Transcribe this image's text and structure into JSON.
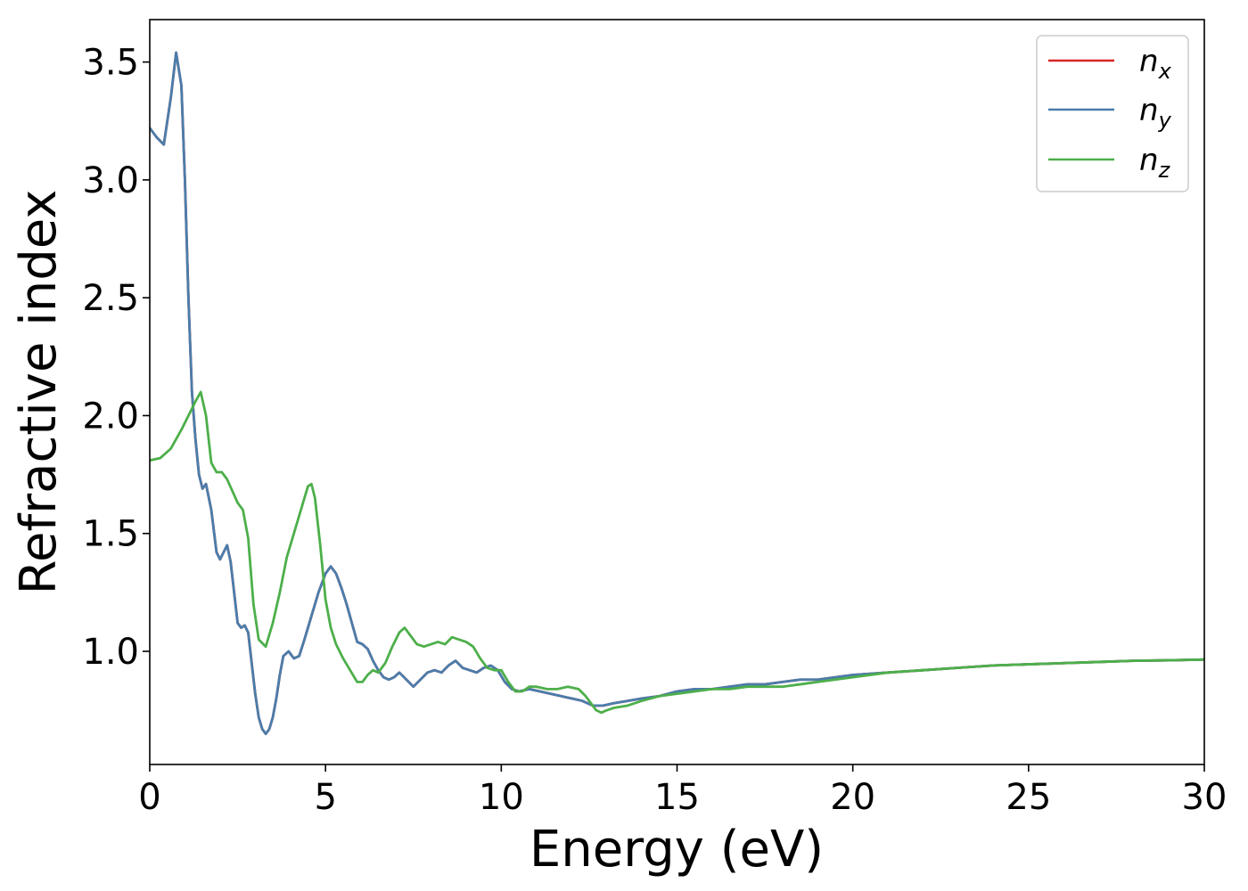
{
  "chart_data": {
    "type": "line",
    "title": "",
    "xlabel": "Energy (eV)",
    "ylabel": "Refractive index",
    "xlim": [
      0,
      30
    ],
    "ylim": [
      0.52,
      3.68
    ],
    "xticks": [
      0,
      5,
      10,
      15,
      20,
      25,
      30
    ],
    "xtick_labels": [
      "0",
      "5",
      "10",
      "15",
      "20",
      "25",
      "30"
    ],
    "yticks": [
      1.0,
      1.5,
      2.0,
      2.5,
      3.0,
      3.5
    ],
    "ytick_labels": [
      "1.0",
      "1.5",
      "2.0",
      "2.5",
      "3.0",
      "3.5"
    ],
    "grid": false,
    "legend_position": "top-right",
    "series": [
      {
        "name": "n",
        "subscript": "x",
        "color": "#d62728",
        "x": [
          0,
          0.2,
          0.4,
          0.6,
          0.75,
          0.9,
          1.0,
          1.1,
          1.2,
          1.3,
          1.4,
          1.5,
          1.6,
          1.75,
          1.9,
          2.0,
          2.1,
          2.2,
          2.3,
          2.4,
          2.5,
          2.6,
          2.7,
          2.8,
          2.9,
          3.0,
          3.1,
          3.2,
          3.3,
          3.4,
          3.5,
          3.6,
          3.7,
          3.8,
          3.95,
          4.1,
          4.25,
          4.4,
          4.6,
          4.8,
          5.0,
          5.15,
          5.3,
          5.45,
          5.6,
          5.75,
          5.9,
          6.05,
          6.2,
          6.35,
          6.5,
          6.65,
          6.8,
          6.95,
          7.1,
          7.3,
          7.5,
          7.7,
          7.9,
          8.1,
          8.3,
          8.5,
          8.7,
          8.9,
          9.1,
          9.3,
          9.5,
          9.7,
          9.9,
          10.1,
          10.3,
          10.5,
          10.8,
          11.1,
          11.4,
          11.7,
          12.0,
          12.3,
          12.6,
          12.9,
          13.2,
          13.6,
          14.0,
          14.5,
          15.0,
          15.5,
          16.0,
          16.5,
          17.0,
          17.5,
          18.0,
          18.5,
          19.0,
          19.5,
          20.0,
          21.0,
          22.0,
          23.0,
          24.0,
          25.0,
          26.0,
          27.0,
          28.0,
          29.0,
          30.0
        ],
        "y": [
          3.22,
          3.18,
          3.15,
          3.35,
          3.54,
          3.4,
          3.0,
          2.5,
          2.1,
          1.9,
          1.75,
          1.69,
          1.71,
          1.6,
          1.42,
          1.39,
          1.42,
          1.45,
          1.38,
          1.25,
          1.12,
          1.1,
          1.11,
          1.08,
          0.95,
          0.82,
          0.72,
          0.67,
          0.65,
          0.67,
          0.72,
          0.8,
          0.9,
          0.98,
          1.0,
          0.97,
          0.98,
          1.05,
          1.15,
          1.25,
          1.33,
          1.36,
          1.33,
          1.27,
          1.2,
          1.12,
          1.04,
          1.03,
          1.01,
          0.96,
          0.92,
          0.89,
          0.88,
          0.89,
          0.91,
          0.88,
          0.85,
          0.88,
          0.91,
          0.92,
          0.91,
          0.94,
          0.96,
          0.93,
          0.92,
          0.91,
          0.93,
          0.94,
          0.92,
          0.87,
          0.84,
          0.83,
          0.84,
          0.83,
          0.82,
          0.81,
          0.8,
          0.79,
          0.77,
          0.77,
          0.78,
          0.79,
          0.8,
          0.81,
          0.83,
          0.84,
          0.84,
          0.85,
          0.86,
          0.86,
          0.87,
          0.88,
          0.88,
          0.89,
          0.9,
          0.91,
          0.92,
          0.93,
          0.94,
          0.945,
          0.95,
          0.955,
          0.96,
          0.962,
          0.965
        ]
      },
      {
        "name": "n",
        "subscript": "y",
        "color": "#4a7dab",
        "x": [
          0,
          0.2,
          0.4,
          0.6,
          0.75,
          0.9,
          1.0,
          1.1,
          1.2,
          1.3,
          1.4,
          1.5,
          1.6,
          1.75,
          1.9,
          2.0,
          2.1,
          2.2,
          2.3,
          2.4,
          2.5,
          2.6,
          2.7,
          2.8,
          2.9,
          3.0,
          3.1,
          3.2,
          3.3,
          3.4,
          3.5,
          3.6,
          3.7,
          3.8,
          3.95,
          4.1,
          4.25,
          4.4,
          4.6,
          4.8,
          5.0,
          5.15,
          5.3,
          5.45,
          5.6,
          5.75,
          5.9,
          6.05,
          6.2,
          6.35,
          6.5,
          6.65,
          6.8,
          6.95,
          7.1,
          7.3,
          7.5,
          7.7,
          7.9,
          8.1,
          8.3,
          8.5,
          8.7,
          8.9,
          9.1,
          9.3,
          9.5,
          9.7,
          9.9,
          10.1,
          10.3,
          10.5,
          10.8,
          11.1,
          11.4,
          11.7,
          12.0,
          12.3,
          12.6,
          12.9,
          13.2,
          13.6,
          14.0,
          14.5,
          15.0,
          15.5,
          16.0,
          16.5,
          17.0,
          17.5,
          18.0,
          18.5,
          19.0,
          19.5,
          20.0,
          21.0,
          22.0,
          23.0,
          24.0,
          25.0,
          26.0,
          27.0,
          28.0,
          29.0,
          30.0
        ],
        "y": [
          3.22,
          3.18,
          3.15,
          3.35,
          3.54,
          3.4,
          3.0,
          2.5,
          2.1,
          1.9,
          1.75,
          1.69,
          1.71,
          1.6,
          1.42,
          1.39,
          1.42,
          1.45,
          1.38,
          1.25,
          1.12,
          1.1,
          1.11,
          1.08,
          0.95,
          0.82,
          0.72,
          0.67,
          0.65,
          0.67,
          0.72,
          0.8,
          0.9,
          0.98,
          1.0,
          0.97,
          0.98,
          1.05,
          1.15,
          1.25,
          1.33,
          1.36,
          1.33,
          1.27,
          1.2,
          1.12,
          1.04,
          1.03,
          1.01,
          0.96,
          0.92,
          0.89,
          0.88,
          0.89,
          0.91,
          0.88,
          0.85,
          0.88,
          0.91,
          0.92,
          0.91,
          0.94,
          0.96,
          0.93,
          0.92,
          0.91,
          0.93,
          0.94,
          0.92,
          0.87,
          0.84,
          0.83,
          0.84,
          0.83,
          0.82,
          0.81,
          0.8,
          0.79,
          0.77,
          0.77,
          0.78,
          0.79,
          0.8,
          0.81,
          0.83,
          0.84,
          0.84,
          0.85,
          0.86,
          0.86,
          0.87,
          0.88,
          0.88,
          0.89,
          0.9,
          0.91,
          0.92,
          0.93,
          0.94,
          0.945,
          0.95,
          0.955,
          0.96,
          0.962,
          0.965
        ]
      },
      {
        "name": "n",
        "subscript": "z",
        "color": "#4daf4a",
        "x": [
          0,
          0.3,
          0.6,
          0.9,
          1.1,
          1.3,
          1.45,
          1.6,
          1.75,
          1.9,
          2.05,
          2.2,
          2.35,
          2.5,
          2.65,
          2.8,
          2.95,
          3.1,
          3.3,
          3.5,
          3.7,
          3.9,
          4.1,
          4.3,
          4.5,
          4.6,
          4.7,
          4.85,
          5.0,
          5.15,
          5.3,
          5.5,
          5.7,
          5.9,
          6.05,
          6.2,
          6.35,
          6.5,
          6.7,
          6.9,
          7.1,
          7.25,
          7.4,
          7.6,
          7.8,
          8.0,
          8.2,
          8.4,
          8.6,
          8.8,
          9.0,
          9.2,
          9.4,
          9.6,
          9.8,
          10.0,
          10.2,
          10.4,
          10.6,
          10.8,
          11.0,
          11.3,
          11.6,
          11.9,
          12.2,
          12.4,
          12.6,
          12.7,
          12.85,
          13.0,
          13.2,
          13.6,
          14.0,
          14.5,
          15.0,
          15.5,
          16.0,
          16.5,
          17.0,
          17.5,
          18.0,
          18.5,
          19.0,
          19.5,
          20.0,
          21.0,
          22.0,
          23.0,
          24.0,
          25.0,
          26.0,
          27.0,
          28.0,
          29.0,
          30.0
        ],
        "y": [
          1.81,
          1.82,
          1.86,
          1.94,
          2.0,
          2.06,
          2.1,
          2.0,
          1.8,
          1.76,
          1.76,
          1.73,
          1.68,
          1.63,
          1.6,
          1.48,
          1.2,
          1.05,
          1.02,
          1.12,
          1.25,
          1.4,
          1.5,
          1.6,
          1.7,
          1.71,
          1.65,
          1.45,
          1.22,
          1.1,
          1.03,
          0.97,
          0.92,
          0.87,
          0.87,
          0.9,
          0.92,
          0.91,
          0.95,
          1.02,
          1.08,
          1.1,
          1.07,
          1.03,
          1.02,
          1.03,
          1.04,
          1.03,
          1.06,
          1.05,
          1.04,
          1.02,
          0.97,
          0.93,
          0.92,
          0.92,
          0.87,
          0.83,
          0.83,
          0.85,
          0.85,
          0.84,
          0.84,
          0.85,
          0.84,
          0.81,
          0.77,
          0.75,
          0.74,
          0.75,
          0.76,
          0.77,
          0.79,
          0.81,
          0.82,
          0.83,
          0.84,
          0.84,
          0.85,
          0.85,
          0.85,
          0.86,
          0.87,
          0.88,
          0.89,
          0.91,
          0.92,
          0.93,
          0.94,
          0.945,
          0.95,
          0.955,
          0.96,
          0.962,
          0.965
        ]
      }
    ]
  }
}
